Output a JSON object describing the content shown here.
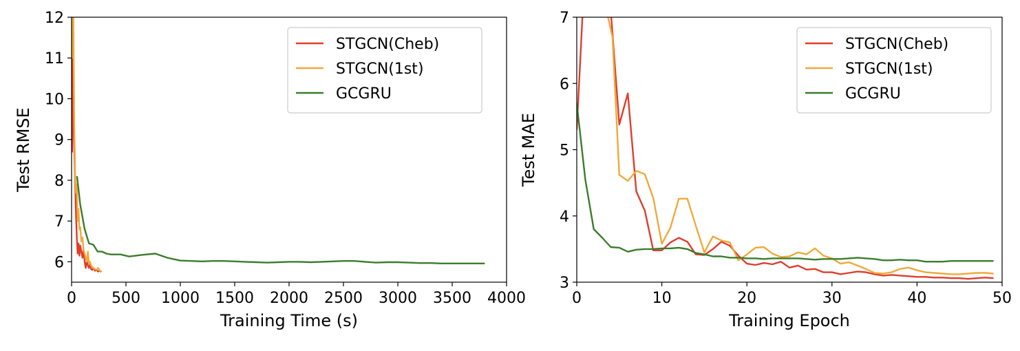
{
  "chart_data": [
    {
      "type": "line",
      "xlabel": "Training Time (s)",
      "ylabel": "Test RMSE",
      "xlim": [
        0,
        4000
      ],
      "ylim": [
        5.5,
        12
      ],
      "xticks": [
        0,
        500,
        1000,
        1500,
        2000,
        2500,
        3000,
        3500,
        4000
      ],
      "yticks": [
        6,
        7,
        8,
        9,
        10,
        11,
        12
      ],
      "grid": false,
      "legend_position": "top-right",
      "series": [
        {
          "name": "STGCN(Cheb)",
          "color": "#e03c2c",
          "points": [
            [
              0,
              12.3
            ],
            [
              5,
              8.7
            ],
            [
              12,
              11.5
            ],
            [
              22,
              9.0
            ],
            [
              32,
              8.0
            ],
            [
              40,
              7.2
            ],
            [
              48,
              6.6
            ],
            [
              56,
              6.2
            ],
            [
              64,
              6.45
            ],
            [
              72,
              6.15
            ],
            [
              80,
              6.4
            ],
            [
              90,
              6.25
            ],
            [
              100,
              6.1
            ],
            [
              110,
              6.3
            ],
            [
              120,
              6.0
            ],
            [
              130,
              5.85
            ],
            [
              140,
              6.05
            ],
            [
              150,
              5.9
            ],
            [
              160,
              5.85
            ],
            [
              170,
              5.95
            ],
            [
              180,
              5.82
            ],
            [
              190,
              5.8
            ],
            [
              200,
              5.85
            ],
            [
              215,
              5.78
            ],
            [
              230,
              5.8
            ],
            [
              245,
              5.76
            ],
            [
              260,
              5.78
            ],
            [
              275,
              5.75
            ]
          ]
        },
        {
          "name": "STGCN(1st)",
          "color": "#f0a93a",
          "points": [
            [
              0,
              12.3
            ],
            [
              8,
              11.0
            ],
            [
              16,
              12.3
            ],
            [
              24,
              9.5
            ],
            [
              32,
              8.2
            ],
            [
              40,
              7.7
            ],
            [
              48,
              7.9
            ],
            [
              56,
              7.0
            ],
            [
              64,
              7.3
            ],
            [
              72,
              6.8
            ],
            [
              80,
              6.85
            ],
            [
              90,
              6.5
            ],
            [
              100,
              6.6
            ],
            [
              110,
              6.3
            ],
            [
              120,
              6.2
            ],
            [
              130,
              6.1
            ],
            [
              140,
              6.0
            ],
            [
              150,
              6.25
            ],
            [
              160,
              5.95
            ],
            [
              170,
              6.0
            ],
            [
              180,
              5.9
            ],
            [
              190,
              5.88
            ],
            [
              200,
              5.85
            ],
            [
              215,
              5.82
            ],
            [
              230,
              5.8
            ],
            [
              245,
              5.85
            ],
            [
              260,
              5.78
            ],
            [
              275,
              5.76
            ]
          ]
        },
        {
          "name": "GCGRU",
          "color": "#3a7d2a",
          "points": [
            [
              50,
              8.1
            ],
            [
              80,
              7.4
            ],
            [
              120,
              6.8
            ],
            [
              160,
              6.45
            ],
            [
              200,
              6.42
            ],
            [
              240,
              6.25
            ],
            [
              280,
              6.25
            ],
            [
              320,
              6.2
            ],
            [
              360,
              6.18
            ],
            [
              450,
              6.18
            ],
            [
              530,
              6.13
            ],
            [
              650,
              6.17
            ],
            [
              770,
              6.2
            ],
            [
              880,
              6.1
            ],
            [
              1000,
              6.03
            ],
            [
              1100,
              6.02
            ],
            [
              1200,
              6.01
            ],
            [
              1300,
              6.02
            ],
            [
              1400,
              6.02
            ],
            [
              1500,
              6.01
            ],
            [
              1600,
              6.0
            ],
            [
              1700,
              5.99
            ],
            [
              1800,
              5.98
            ],
            [
              1900,
              5.99
            ],
            [
              2000,
              6.0
            ],
            [
              2100,
              6.0
            ],
            [
              2200,
              5.99
            ],
            [
              2300,
              6.0
            ],
            [
              2400,
              6.01
            ],
            [
              2500,
              6.02
            ],
            [
              2600,
              6.02
            ],
            [
              2700,
              6.0
            ],
            [
              2800,
              5.98
            ],
            [
              2900,
              5.99
            ],
            [
              3000,
              5.99
            ],
            [
              3100,
              5.98
            ],
            [
              3200,
              5.97
            ],
            [
              3300,
              5.97
            ],
            [
              3400,
              5.96
            ],
            [
              3500,
              5.96
            ],
            [
              3600,
              5.96
            ],
            [
              3700,
              5.96
            ],
            [
              3800,
              5.96
            ]
          ]
        }
      ]
    },
    {
      "type": "line",
      "xlabel": "Training Epoch",
      "ylabel": "Test MAE",
      "xlim": [
        0,
        50
      ],
      "ylim": [
        3,
        7
      ],
      "xticks": [
        0,
        10,
        20,
        30,
        40,
        50
      ],
      "yticks": [
        3,
        4,
        5,
        6,
        7
      ],
      "grid": false,
      "legend_position": "top-right",
      "series": [
        {
          "name": "STGCN(Cheb)",
          "color": "#e03c2c",
          "points": [
            [
              0,
              5.3
            ],
            [
              0.7,
              7.1
            ],
            [
              4,
              7.1
            ],
            [
              5,
              5.38
            ],
            [
              6,
              5.85
            ],
            [
              7,
              4.37
            ],
            [
              8,
              4.08
            ],
            [
              9,
              3.48
            ],
            [
              10,
              3.48
            ],
            [
              11,
              3.6
            ],
            [
              12,
              3.67
            ],
            [
              13,
              3.61
            ],
            [
              14,
              3.42
            ],
            [
              15,
              3.41
            ],
            [
              16,
              3.5
            ],
            [
              17,
              3.61
            ],
            [
              18,
              3.55
            ],
            [
              19,
              3.4
            ],
            [
              20,
              3.28
            ],
            [
              21,
              3.26
            ],
            [
              22,
              3.29
            ],
            [
              23,
              3.27
            ],
            [
              24,
              3.31
            ],
            [
              25,
              3.22
            ],
            [
              26,
              3.25
            ],
            [
              27,
              3.19
            ],
            [
              28,
              3.2
            ],
            [
              29,
              3.15
            ],
            [
              30,
              3.15
            ],
            [
              31,
              3.12
            ],
            [
              32,
              3.14
            ],
            [
              33,
              3.16
            ],
            [
              34,
              3.15
            ],
            [
              35,
              3.12
            ],
            [
              36,
              3.1
            ],
            [
              37,
              3.11
            ],
            [
              38,
              3.1
            ],
            [
              39,
              3.09
            ],
            [
              40,
              3.08
            ],
            [
              41,
              3.08
            ],
            [
              42,
              3.07
            ],
            [
              43,
              3.07
            ],
            [
              44,
              3.06
            ],
            [
              45,
              3.06
            ],
            [
              46,
              3.05
            ],
            [
              47,
              3.06
            ],
            [
              48,
              3.07
            ],
            [
              49,
              3.06
            ]
          ]
        },
        {
          "name": "STGCN(1st)",
          "color": "#f0a93a",
          "points": [
            [
              3.5,
              7.1
            ],
            [
              4.2,
              6.7
            ],
            [
              5,
              4.62
            ],
            [
              6,
              4.53
            ],
            [
              7,
              4.68
            ],
            [
              8,
              4.63
            ],
            [
              9,
              4.27
            ],
            [
              10,
              3.58
            ],
            [
              11,
              3.82
            ],
            [
              12,
              4.26
            ],
            [
              13,
              4.26
            ],
            [
              14,
              3.85
            ],
            [
              15,
              3.45
            ],
            [
              16,
              3.69
            ],
            [
              17,
              3.63
            ],
            [
              18,
              3.6
            ],
            [
              19,
              3.33
            ],
            [
              20,
              3.42
            ],
            [
              21,
              3.52
            ],
            [
              22,
              3.53
            ],
            [
              23,
              3.43
            ],
            [
              24,
              3.38
            ],
            [
              25,
              3.39
            ],
            [
              26,
              3.45
            ],
            [
              27,
              3.42
            ],
            [
              28,
              3.51
            ],
            [
              29,
              3.4
            ],
            [
              30,
              3.36
            ],
            [
              31,
              3.28
            ],
            [
              32,
              3.3
            ],
            [
              33,
              3.25
            ],
            [
              34,
              3.2
            ],
            [
              35,
              3.14
            ],
            [
              36,
              3.13
            ],
            [
              37,
              3.15
            ],
            [
              38,
              3.2
            ],
            [
              39,
              3.22
            ],
            [
              40,
              3.18
            ],
            [
              41,
              3.15
            ],
            [
              42,
              3.14
            ],
            [
              43,
              3.13
            ],
            [
              44,
              3.12
            ],
            [
              45,
              3.12
            ],
            [
              46,
              3.13
            ],
            [
              47,
              3.14
            ],
            [
              48,
              3.14
            ],
            [
              49,
              3.13
            ]
          ]
        },
        {
          "name": "GCGRU",
          "color": "#3a7d2a",
          "points": [
            [
              0,
              5.7
            ],
            [
              1,
              4.55
            ],
            [
              2,
              3.8
            ],
            [
              3,
              3.67
            ],
            [
              4,
              3.53
            ],
            [
              5,
              3.52
            ],
            [
              6,
              3.46
            ],
            [
              7,
              3.49
            ],
            [
              8,
              3.5
            ],
            [
              9,
              3.5
            ],
            [
              10,
              3.51
            ],
            [
              11,
              3.51
            ],
            [
              12,
              3.52
            ],
            [
              13,
              3.5
            ],
            [
              14,
              3.44
            ],
            [
              15,
              3.42
            ],
            [
              16,
              3.39
            ],
            [
              17,
              3.39
            ],
            [
              18,
              3.37
            ],
            [
              19,
              3.37
            ],
            [
              20,
              3.36
            ],
            [
              21,
              3.36
            ],
            [
              22,
              3.35
            ],
            [
              23,
              3.36
            ],
            [
              24,
              3.36
            ],
            [
              25,
              3.36
            ],
            [
              26,
              3.36
            ],
            [
              27,
              3.35
            ],
            [
              28,
              3.34
            ],
            [
              29,
              3.35
            ],
            [
              30,
              3.35
            ],
            [
              31,
              3.35
            ],
            [
              32,
              3.36
            ],
            [
              33,
              3.37
            ],
            [
              34,
              3.36
            ],
            [
              35,
              3.35
            ],
            [
              36,
              3.33
            ],
            [
              37,
              3.33
            ],
            [
              38,
              3.34
            ],
            [
              39,
              3.33
            ],
            [
              40,
              3.33
            ],
            [
              41,
              3.31
            ],
            [
              42,
              3.31
            ],
            [
              43,
              3.31
            ],
            [
              44,
              3.32
            ],
            [
              45,
              3.32
            ],
            [
              46,
              3.32
            ],
            [
              47,
              3.32
            ],
            [
              48,
              3.32
            ],
            [
              49,
              3.32
            ]
          ]
        }
      ]
    }
  ]
}
